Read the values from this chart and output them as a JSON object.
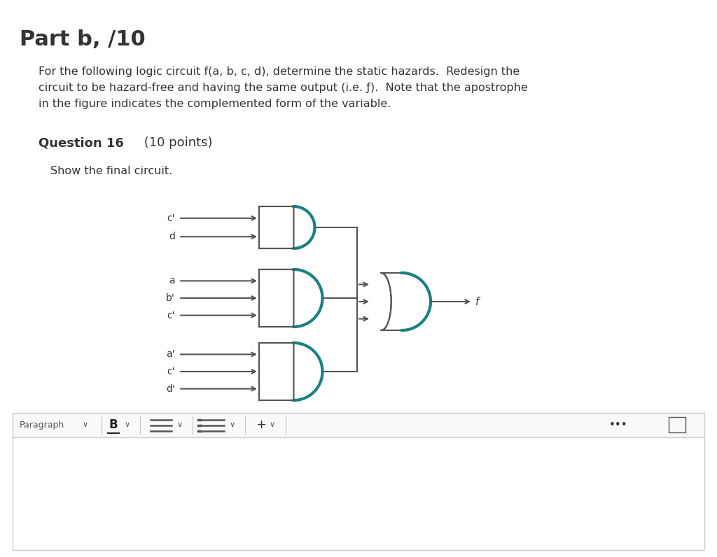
{
  "title": "Part b, /10",
  "desc1": "For the following logic circuit f(a, b, c, d), determine the static hazards.  Redesign the",
  "desc2": "circuit to be hazard-free and having the same output (i.e. ƒ).  Note that the apostrophe",
  "desc3": "in the figure indicates the complemented form of the variable.",
  "q_bold": "Question 16",
  "q_normal": " (10 points)",
  "show": "Show the final circuit.",
  "teal": "#1a8080",
  "gray": "#555555",
  "lgray": "#aaaaaa",
  "white": "#ffffff",
  "text_dark": "#333333",
  "bg": "#ffffff",
  "gate1_labels": [
    "c'",
    "d"
  ],
  "gate2_labels": [
    "a",
    "b'",
    "c'"
  ],
  "gate3_labels": [
    "a'",
    "c'",
    "d'"
  ],
  "out_label": "f"
}
